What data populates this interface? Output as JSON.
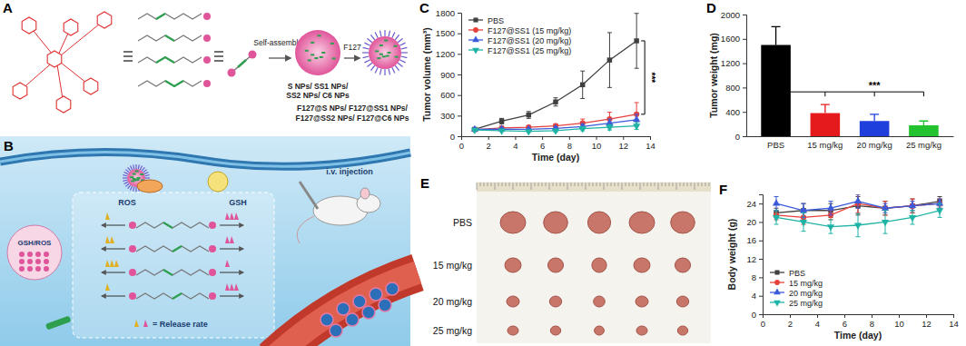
{
  "schematic_a": {
    "label": "A",
    "step1": "Self-assembly",
    "step2": "F127",
    "np_names": [
      "S NPs/ SS1 NPs/",
      "SS2 NPs/ C6 NPs"
    ],
    "coated_np_names": [
      "F127@S NPs/ F127@SS1 NPs/",
      "F127@SS2 NPs/ F127@C6 NPs"
    ]
  },
  "schematic_b": {
    "label": "B",
    "ros": "ROS",
    "gsh": "GSH",
    "endosome": "GSH/ROS",
    "release_legend": "= Release rate",
    "injection": "i.v. injection"
  },
  "photo_e": {
    "label": "E",
    "rows": [
      "PBS",
      "15 mg/kg",
      "20 mg/kg",
      "25 mg/kg"
    ]
  },
  "chart_data": [
    {
      "type": "line",
      "title": "C",
      "xlabel": "Time (day)",
      "ylabel": "Tumor volume (mm³)",
      "x": [
        1,
        3,
        5,
        7,
        9,
        11,
        13
      ],
      "xlim": [
        0,
        14
      ],
      "xticks": [
        0,
        2,
        4,
        6,
        8,
        10,
        12,
        14
      ],
      "ylim": [
        0,
        1800
      ],
      "yticks": [
        0,
        300,
        600,
        900,
        1200,
        1500,
        1800
      ],
      "legend": "upper left",
      "annotations": [
        "***"
      ],
      "series": [
        {
          "name": "PBS",
          "color": "#404040",
          "marker": "square",
          "values": [
            100,
            220,
            310,
            500,
            750,
            1110,
            1390
          ],
          "errors": [
            15,
            40,
            50,
            60,
            200,
            400,
            400
          ]
        },
        {
          "name": "F127@SS1 (15 mg/kg)",
          "color": "#e8413c",
          "marker": "circle",
          "values": [
            95,
            120,
            130,
            150,
            190,
            250,
            320
          ],
          "errors": [
            15,
            20,
            25,
            30,
            60,
            100,
            170
          ]
        },
        {
          "name": "F127@SS1 (20 mg/kg)",
          "color": "#3b5bdb",
          "marker": "triangle-up",
          "values": [
            100,
            105,
            100,
            115,
            140,
            190,
            240
          ],
          "errors": [
            15,
            15,
            20,
            25,
            40,
            60,
            80
          ]
        },
        {
          "name": "F127@SS1 (25 mg/kg)",
          "color": "#1fb3a6",
          "marker": "triangle-down",
          "values": [
            90,
            80,
            70,
            80,
            110,
            130,
            150
          ],
          "errors": [
            10,
            10,
            15,
            20,
            30,
            40,
            50
          ]
        }
      ]
    },
    {
      "type": "bar",
      "title": "D",
      "ylabel": "Tumor weight (mg)",
      "categories": [
        "PBS",
        "15 mg/kg",
        "20 mg/kg",
        "25 mg/kg"
      ],
      "values": [
        1500,
        380,
        250,
        180
      ],
      "errors": [
        300,
        140,
        110,
        70
      ],
      "colors": [
        "#000000",
        "#e41a1c",
        "#1f3fdd",
        "#22c32e"
      ],
      "ylim": [
        0,
        2000
      ],
      "yticks": [
        0,
        400,
        800,
        1200,
        1600,
        2000
      ],
      "annotations": [
        "***"
      ]
    },
    {
      "type": "line",
      "title": "F",
      "xlabel": "Time (day)",
      "ylabel": "Body weight (g)",
      "x": [
        1,
        3,
        5,
        7,
        9,
        11,
        13
      ],
      "xlim": [
        0,
        14
      ],
      "xticks": [
        0,
        2,
        4,
        6,
        8,
        10,
        12,
        14
      ],
      "ylim": [
        0,
        26
      ],
      "yticks": [
        0,
        4,
        8,
        12,
        16,
        20,
        24
      ],
      "legend": "lower left",
      "series": [
        {
          "name": "PBS",
          "color": "#404040",
          "marker": "square",
          "values": [
            22,
            22.5,
            22.5,
            23.5,
            23,
            23.5,
            24.5
          ],
          "errors": [
            1,
            1.5,
            1.5,
            2,
            1.5,
            1.5,
            1
          ]
        },
        {
          "name": "15 mg/kg",
          "color": "#e8413c",
          "marker": "circle",
          "values": [
            21.5,
            21,
            21.5,
            24,
            23,
            23.5,
            24
          ],
          "errors": [
            1,
            1.5,
            1,
            2,
            1.5,
            1.5,
            1
          ]
        },
        {
          "name": "20 mg/kg",
          "color": "#3b5bdb",
          "marker": "triangle-up",
          "values": [
            24,
            22.5,
            23,
            24.5,
            23,
            23.5,
            24
          ],
          "errors": [
            1.5,
            1.5,
            1.5,
            1.5,
            1,
            1,
            1
          ]
        },
        {
          "name": "25 mg/kg",
          "color": "#1fb3a6",
          "marker": "triangle-down",
          "values": [
            21,
            20,
            19,
            19.3,
            20,
            21,
            22.5
          ],
          "errors": [
            1.5,
            2,
            1.5,
            2.5,
            2.5,
            1.5,
            1.5
          ]
        }
      ]
    }
  ]
}
